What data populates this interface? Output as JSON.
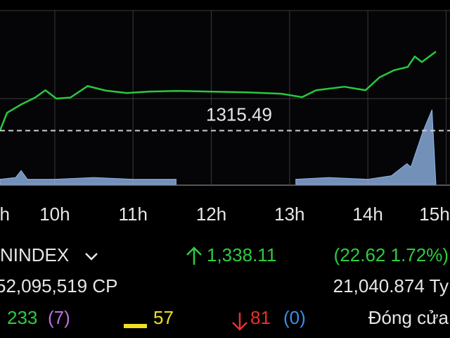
{
  "chart_data": {
    "type": "line",
    "xlim": [
      9.3,
      15.05
    ],
    "ylim": [
      1300,
      1350
    ],
    "y2lim": [
      0,
      100
    ],
    "xticks": [
      {
        "value": 9,
        "label": "h"
      },
      {
        "value": 10,
        "label": "10h"
      },
      {
        "value": 11,
        "label": "11h"
      },
      {
        "value": 12,
        "label": "12h"
      },
      {
        "value": 13,
        "label": "13h"
      },
      {
        "value": 14,
        "label": "14h"
      },
      {
        "value": 15,
        "label": "15h"
      }
    ],
    "reference": 1315.49,
    "series": [
      {
        "color": "#27c93f",
        "x": [
          9.3,
          9.39,
          9.57,
          9.75,
          9.88,
          10.02,
          10.2,
          10.42,
          10.65,
          10.92,
          11.19,
          11.55,
          12.0,
          12.44,
          12.89,
          13.16,
          13.34,
          13.7,
          13.97,
          14.15,
          14.33,
          14.51,
          14.6,
          14.69,
          14.87
        ],
        "values": [
          1315.5,
          1320.6,
          1323,
          1325,
          1327.1,
          1324.7,
          1325,
          1328.3,
          1327,
          1326.3,
          1326.7,
          1326.9,
          1326.7,
          1326.5,
          1326.1,
          1325.1,
          1327.1,
          1328.1,
          1327.1,
          1330.8,
          1332.8,
          1333.8,
          1336.8,
          1335.2,
          1338.2
        ]
      },
      {
        "color": "#8fb3e6",
        "axis": "y2",
        "x": [
          9.3,
          9.5,
          9.57,
          9.65,
          10.0,
          10.5,
          11.0,
          11.55,
          12.0,
          13.08,
          13.5,
          14.0,
          14.3,
          14.5,
          14.55,
          14.7,
          14.82,
          14.87
        ],
        "values": [
          3,
          4,
          8,
          3,
          3,
          4,
          3,
          3,
          null,
          3,
          4,
          3,
          5,
          12,
          10,
          30,
          43,
          0
        ]
      }
    ]
  },
  "summary": {
    "index": "NINDEX",
    "price": "1,338.11",
    "change": "(22.62 1.72%)",
    "volume": "52,095,519 CP",
    "value": "21,040.874 Ty",
    "up": "233",
    "ceiling": "(7)",
    "unchanged": "57",
    "down": "81",
    "floor": "(0)",
    "status": "Đóng cửa"
  }
}
